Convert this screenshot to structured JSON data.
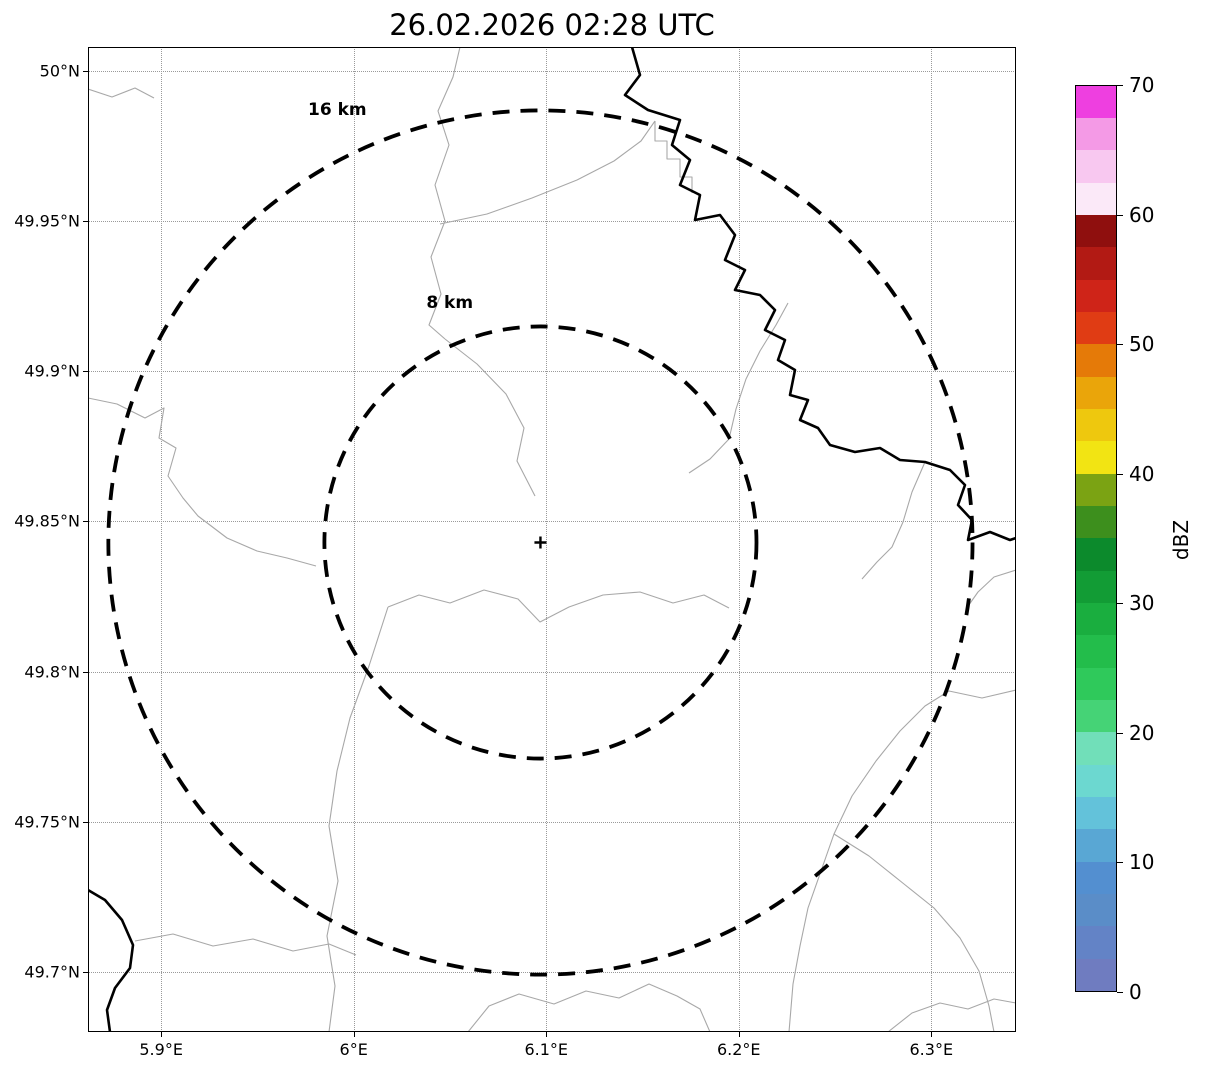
{
  "title": "26.02.2026 02:28 UTC",
  "axes": {
    "x": {
      "min": 5.862,
      "max": 6.344,
      "ticks": [
        {
          "value": 5.9,
          "label": "5.9°E"
        },
        {
          "value": 6.0,
          "label": "6°E"
        },
        {
          "value": 6.1,
          "label": "6.1°E"
        },
        {
          "value": 6.2,
          "label": "6.2°E"
        },
        {
          "value": 6.3,
          "label": "6.3°E"
        }
      ]
    },
    "y": {
      "min": 49.68,
      "max": 50.008,
      "ticks": [
        {
          "value": 50.0,
          "label": "50°N"
        },
        {
          "value": 49.95,
          "label": "49.95°N"
        },
        {
          "value": 49.9,
          "label": "49.9°N"
        },
        {
          "value": 49.85,
          "label": "49.85°N"
        },
        {
          "value": 49.8,
          "label": "49.8°N"
        },
        {
          "value": 49.75,
          "label": "49.75°N"
        },
        {
          "value": 49.7,
          "label": "49.7°N"
        }
      ]
    }
  },
  "radar_center": {
    "lon": 6.097,
    "lat": 49.843,
    "marker": "+"
  },
  "rings": [
    {
      "radius_km": 16,
      "label": "16 km"
    },
    {
      "radius_km": 8,
      "label": "8 km"
    }
  ],
  "colorbar": {
    "label": "dBZ",
    "min": 0,
    "max": 70,
    "tick_values": [
      0,
      10,
      20,
      30,
      40,
      50,
      60,
      70
    ],
    "colors_bottom_to_top": [
      "#6f7cc0",
      "#6383c6",
      "#5a8dc8",
      "#538fd0",
      "#59a7d4",
      "#63c2da",
      "#6cd8d0",
      "#71dfb9",
      "#45d376",
      "#2fc95b",
      "#23bd4b",
      "#1aae3f",
      "#129c35",
      "#0c8a2c",
      "#3d8f1d",
      "#7ba313",
      "#f2e413",
      "#eec80e",
      "#eaa50a",
      "#e57a08",
      "#e03c14",
      "#cf2418",
      "#b21a14",
      "#8f0f0e",
      "#fbe9f8",
      "#f8c8f0",
      "#f49ae6",
      "#ee3fe0"
    ]
  },
  "chart_data": {
    "type": "heatmap",
    "title": "26.02.2026 02:28 UTC",
    "description": "Weather radar reflectivity display (map view) with range rings around the radar site; no reflectivity echoes visible at this timestamp",
    "x_axis": {
      "label": "",
      "ticks": [
        "5.9°E",
        "6°E",
        "6.1°E",
        "6.2°E",
        "6.3°E"
      ],
      "range_deg_e": [
        5.862,
        6.344
      ]
    },
    "y_axis": {
      "label": "",
      "ticks": [
        "50°N",
        "49.95°N",
        "49.9°N",
        "49.85°N",
        "49.8°N",
        "49.75°N",
        "49.7°N"
      ],
      "range_deg_n": [
        49.68,
        50.008
      ]
    },
    "grid": true,
    "legend_position": "right colorbar",
    "colorbar": {
      "label": "dBZ",
      "range": [
        0,
        70
      ],
      "ticks": [
        0,
        10,
        20,
        30,
        40,
        50,
        60,
        70
      ]
    },
    "radar_center": {
      "lon_deg_e": 6.097,
      "lat_deg_n": 49.843
    },
    "range_rings_km": [
      8,
      16
    ],
    "range_ring_labels": [
      "8 km",
      "16 km"
    ],
    "reflectivity_values": []
  }
}
